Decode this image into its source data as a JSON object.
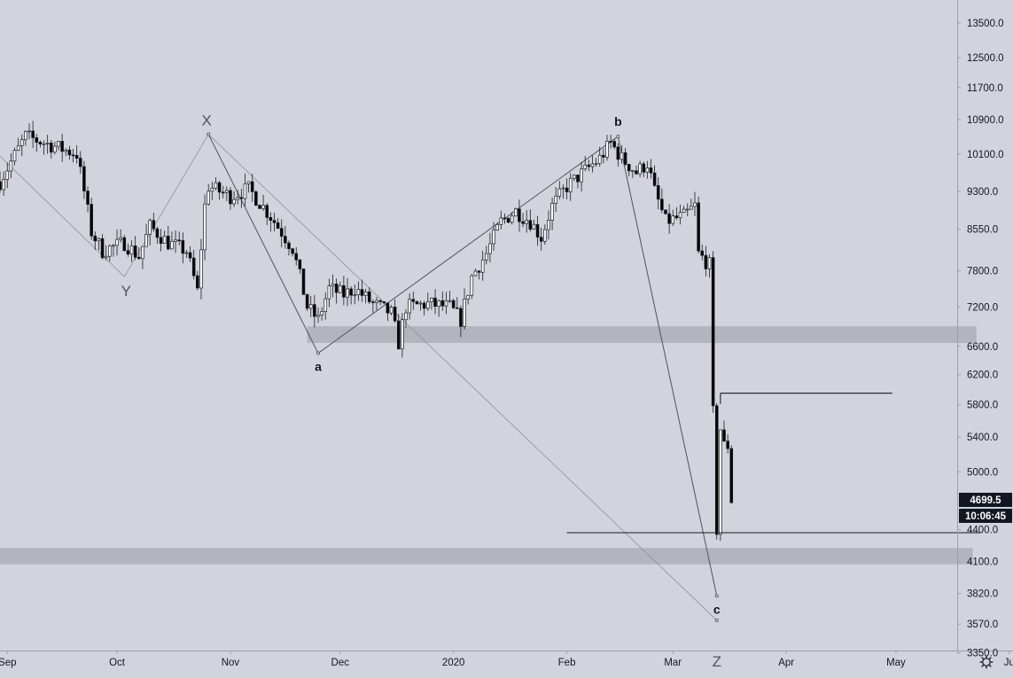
{
  "chart_data": {
    "type": "candlestick",
    "scale": "log",
    "ylim": [
      3200,
      14200
    ],
    "yticks": [
      13500,
      12500,
      11700,
      10900,
      10100,
      9300,
      8550,
      7800,
      7200,
      6600,
      6200,
      5800,
      5400,
      5000,
      4400,
      4100,
      3820,
      3570,
      3350
    ],
    "ytick_labels": [
      "13500.0",
      "12500.0",
      "11700.0",
      "10900.0",
      "10100.0",
      "9300.0",
      "8550.0",
      "7800.0",
      "7200.0",
      "6600.0",
      "6200.0",
      "5800.0",
      "5400.0",
      "5000.0",
      "4400.0",
      "4100.0",
      "3820.0",
      "3570.0",
      "3350.0"
    ],
    "xlim": [
      "2019-08-30",
      "2020-06-02"
    ],
    "xticks": [
      {
        "date": "2019-09-01",
        "label": "Sep"
      },
      {
        "date": "2019-10-01",
        "label": "Oct"
      },
      {
        "date": "2019-11-01",
        "label": "Nov"
      },
      {
        "date": "2019-12-01",
        "label": "Dec"
      },
      {
        "date": "2020-01-01",
        "label": "2020"
      },
      {
        "date": "2020-02-01",
        "label": "Feb"
      },
      {
        "date": "2020-03-01",
        "label": "Mar"
      },
      {
        "date": "2020-04-01",
        "label": "Apr"
      },
      {
        "date": "2020-05-01",
        "label": "May"
      },
      {
        "date": "2020-06-01",
        "label": "Ju"
      }
    ],
    "price_points": [
      [
        "2019-08-30",
        9500
      ],
      [
        "2019-09-06",
        10500
      ],
      [
        "2019-09-13",
        10300
      ],
      [
        "2019-09-20",
        10100
      ],
      [
        "2019-09-24",
        8500
      ],
      [
        "2019-09-27",
        8150
      ],
      [
        "2019-10-03",
        8300
      ],
      [
        "2019-10-07",
        8050
      ],
      [
        "2019-10-10",
        8600
      ],
      [
        "2019-10-15",
        8300
      ],
      [
        "2019-10-20",
        8150
      ],
      [
        "2019-10-23",
        7450
      ],
      [
        "2019-10-25",
        9000
      ],
      [
        "2019-10-26",
        9400
      ],
      [
        "2019-11-01",
        9200
      ],
      [
        "2019-11-06",
        9350
      ],
      [
        "2019-11-12",
        8800
      ],
      [
        "2019-11-18",
        8200
      ],
      [
        "2019-11-22",
        7200
      ],
      [
        "2019-11-25",
        7000
      ],
      [
        "2019-11-28",
        7500
      ],
      [
        "2019-12-02",
        7400
      ],
      [
        "2019-12-05",
        7500
      ],
      [
        "2019-12-10",
        7250
      ],
      [
        "2019-12-15",
        7100
      ],
      [
        "2019-12-17",
        6650
      ],
      [
        "2019-12-19",
        7200
      ],
      [
        "2019-12-25",
        7250
      ],
      [
        "2019-12-31",
        7200
      ],
      [
        "2020-01-03",
        7000
      ],
      [
        "2020-01-06",
        7700
      ],
      [
        "2020-01-10",
        8100
      ],
      [
        "2020-01-14",
        8700
      ],
      [
        "2020-01-18",
        8900
      ],
      [
        "2020-01-22",
        8700
      ],
      [
        "2020-01-25",
        8400
      ],
      [
        "2020-01-28",
        9000
      ],
      [
        "2020-02-01",
        9400
      ],
      [
        "2020-02-07",
        9800
      ],
      [
        "2020-02-10",
        10000
      ],
      [
        "2020-02-13",
        10350
      ],
      [
        "2020-02-16",
        10000
      ],
      [
        "2020-02-20",
        9700
      ],
      [
        "2020-02-23",
        9900
      ],
      [
        "2020-02-25",
        9300
      ],
      [
        "2020-02-28",
        8700
      ],
      [
        "2020-03-04",
        8800
      ],
      [
        "2020-03-07",
        9000
      ],
      [
        "2020-03-08",
        8100
      ],
      [
        "2020-03-11",
        7900
      ],
      [
        "2020-03-12",
        5700
      ],
      [
        "2020-03-13",
        4400
      ],
      [
        "2020-03-14",
        5500
      ],
      [
        "2020-03-15",
        5300
      ],
      [
        "2020-03-16",
        5300
      ],
      [
        "2020-03-17",
        4700
      ]
    ],
    "zones": [
      {
        "from": "2019-11-22",
        "to": "2020-05-23",
        "low": 6650,
        "high": 6900
      },
      {
        "from": "2019-08-30",
        "to": "2020-05-22",
        "low": 4075,
        "high": 4225
      }
    ],
    "wave_points": [
      {
        "label": "X",
        "date": "2019-10-26",
        "value": 10550
      },
      {
        "label": "Y",
        "date": "2019-10-03",
        "value": 7700
      },
      {
        "label": "a",
        "date": "2019-11-25",
        "value": 6500
      },
      {
        "label": "b",
        "date": "2020-02-15",
        "value": 10500
      },
      {
        "label": "c",
        "date": "2020-03-13",
        "value": 3800
      },
      {
        "label": "Z",
        "date": "2020-03-13",
        "value": 3600
      }
    ],
    "hlines": [
      {
        "from": "2020-03-14",
        "to": "2020-04-30",
        "value": 5950
      },
      {
        "from": "2020-02-01",
        "to": "2020-05-24",
        "value": 4370
      }
    ],
    "last_price": {
      "value": 4699.5,
      "label": "4699.5",
      "countdown": "10:06:45"
    }
  },
  "toolbar": {
    "settings_icon": "gear-icon"
  }
}
